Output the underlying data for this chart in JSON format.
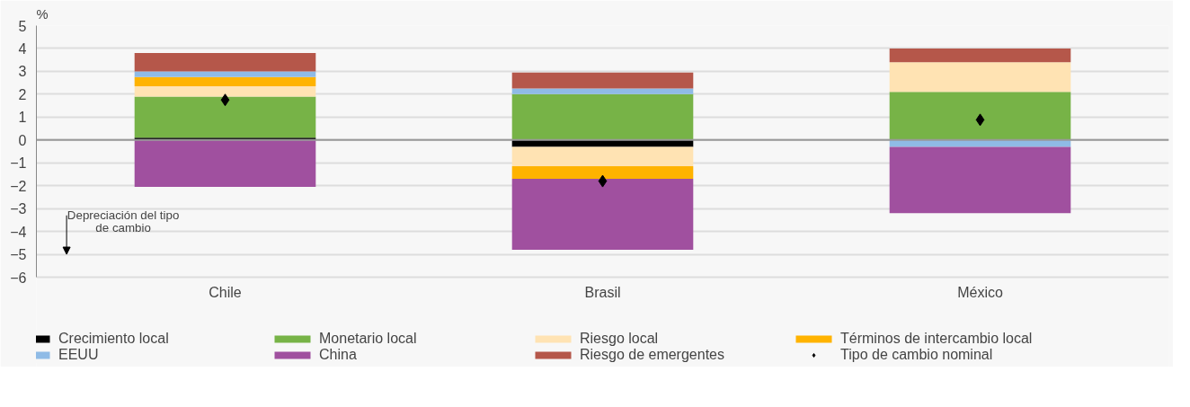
{
  "chart_data": {
    "type": "bar",
    "stacked": true,
    "ylabel": "%",
    "categories": [
      "Chile",
      "Brasil",
      "México"
    ],
    "series": [
      {
        "name": "Crecimiento local",
        "color": "#000000",
        "values": [
          0.1,
          -0.3,
          0
        ]
      },
      {
        "name": "Monetario local",
        "color": "#77b347",
        "values": [
          1.8,
          2.0,
          2.1
        ]
      },
      {
        "name": "Riesgo local",
        "color": "#ffe3b3",
        "values": [
          0.45,
          -0.85,
          1.3
        ]
      },
      {
        "name": "Términos de intercambio local",
        "color": "#ffb300",
        "values": [
          0.4,
          -0.55,
          0
        ]
      },
      {
        "name": "EEUU",
        "color": "#8fbbe6",
        "values": [
          0.25,
          0.25,
          -0.3
        ]
      },
      {
        "name": "China",
        "color": "#a0509f",
        "values": [
          -2.05,
          -3.1,
          -2.9
        ]
      },
      {
        "name": "Riesgo de emergentes",
        "color": "#b5574a",
        "values": [
          0.8,
          0.7,
          0.6
        ]
      },
      {
        "name": "Tipo de cambio nominal",
        "type": "scatter",
        "marker": "diamond",
        "color": "#000000",
        "x": [
          "Chile",
          "Brasil",
          "México"
        ],
        "values": [
          1.75,
          -1.8,
          0.88
        ]
      }
    ],
    "ylim": [
      -6,
      5
    ],
    "yticks": [
      -6,
      -5,
      -4,
      -3,
      -2,
      -1,
      0,
      1,
      2,
      3,
      4,
      5
    ],
    "grid": "y",
    "legend": "bottom",
    "annotations": [
      "Depreciación del tipo de cambio"
    ]
  }
}
